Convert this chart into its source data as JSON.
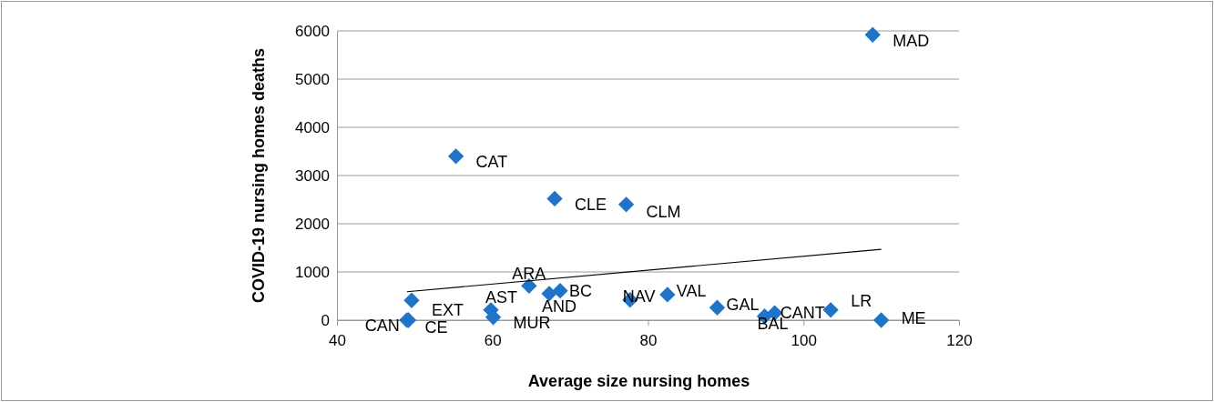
{
  "chart_data": {
    "type": "scatter",
    "xlabel": "Average size nursing homes",
    "ylabel": "COVID-19 nursing homes deaths",
    "xlim": [
      40,
      120
    ],
    "ylim": [
      0,
      6000
    ],
    "xticks": [
      40,
      60,
      80,
      100,
      120
    ],
    "yticks": [
      0,
      1000,
      2000,
      3000,
      4000,
      5000,
      6000
    ],
    "grid": "y",
    "marker": "diamond",
    "series": [
      {
        "color": "#1f74c8",
        "x": [
          49.0,
          49.2,
          49.6,
          59.8,
          60.1,
          55.3,
          64.7,
          67.3,
          68.7,
          68.0,
          77.2,
          77.7,
          82.5,
          88.9,
          95.0,
          96.3,
          103.5,
          108.9,
          110.0
        ],
        "values": [
          0,
          0,
          410,
          210,
          60,
          3400,
          710,
          550,
          610,
          2520,
          2400,
          420,
          530,
          260,
          80,
          150,
          210,
          5920,
          0
        ]
      },
      {
        "type": "line",
        "color": "#000000",
        "marker": "none",
        "x": [
          49,
          110
        ],
        "values": [
          590,
          1470
        ]
      }
    ],
    "annotations": [
      {
        "text": "CAN",
        "x": 49.0,
        "y": 0
      },
      {
        "text": "CE",
        "x": 49.2,
        "y": 0
      },
      {
        "text": "EXT",
        "x": 49.6,
        "y": 410
      },
      {
        "text": "AST",
        "x": 59.8,
        "y": 210
      },
      {
        "text": "MUR",
        "x": 60.1,
        "y": 60
      },
      {
        "text": "CAT",
        "x": 55.3,
        "y": 3400
      },
      {
        "text": "ARA",
        "x": 64.7,
        "y": 710
      },
      {
        "text": "AND",
        "x": 67.3,
        "y": 550
      },
      {
        "text": "BC",
        "x": 68.7,
        "y": 610
      },
      {
        "text": "CLE",
        "x": 68.0,
        "y": 2520
      },
      {
        "text": "CLM",
        "x": 77.2,
        "y": 2400
      },
      {
        "text": "NAV",
        "x": 77.7,
        "y": 420
      },
      {
        "text": "VAL",
        "x": 82.5,
        "y": 530
      },
      {
        "text": "GAL",
        "x": 88.9,
        "y": 260
      },
      {
        "text": "BAL",
        "x": 95.0,
        "y": 80
      },
      {
        "text": "CANT",
        "x": 96.3,
        "y": 150
      },
      {
        "text": "LR",
        "x": 103.5,
        "y": 210
      },
      {
        "text": "MAD",
        "x": 108.9,
        "y": 5920
      },
      {
        "text": "ME",
        "x": 110.0,
        "y": 0
      }
    ]
  }
}
